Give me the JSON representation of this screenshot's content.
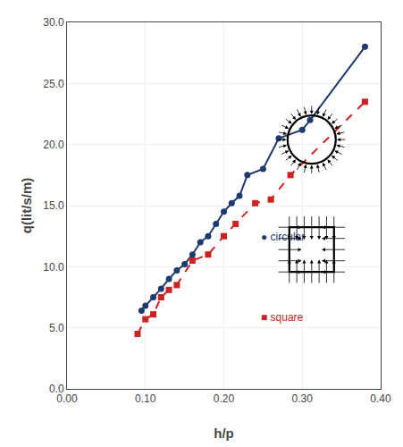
{
  "chart_data": {
    "type": "line",
    "x_label": "h/p",
    "y_label": "q(lit/s/m)",
    "series": [
      {
        "x": [
          0.095,
          0.1,
          0.11,
          0.12,
          0.13,
          0.14,
          0.15,
          0.16,
          0.17,
          0.18,
          0.19,
          0.2,
          0.21,
          0.22,
          0.23,
          0.25,
          0.27,
          0.3,
          0.31,
          0.38
        ],
        "values": [
          6.4,
          6.8,
          7.5,
          8.2,
          9.0,
          9.7,
          10.2,
          11.0,
          12.0,
          12.5,
          13.5,
          14.5,
          15.2,
          15.8,
          17.5,
          18.0,
          20.5,
          21.2,
          22.0,
          28.0
        ],
        "color": "#1f3a6e",
        "marker": "circle",
        "line_style": "solid"
      },
      {
        "x": [
          0.09,
          0.1,
          0.11,
          0.12,
          0.13,
          0.14,
          0.16,
          0.18,
          0.2,
          0.215,
          0.24,
          0.26,
          0.285,
          0.38
        ],
        "values": [
          4.5,
          5.7,
          6.1,
          7.5,
          8.1,
          8.5,
          10.5,
          11.0,
          12.5,
          13.5,
          15.2,
          15.5,
          17.5,
          23.5
        ],
        "color": "#cc2222",
        "marker": "square",
        "line_style": "dashed"
      }
    ],
    "annotations": [
      {
        "text": "● circular",
        "x": 0.245,
        "y": 11.8,
        "color": "#1f3a6e"
      },
      {
        "text": "■ square",
        "x": 0.245,
        "y": 5.2,
        "color": "#cc2222"
      }
    ],
    "xlim": [
      0.0,
      0.4
    ],
    "ylim": [
      0.0,
      30.0
    ],
    "xticks": [
      {
        "value": 0.0,
        "label": "0.00"
      },
      {
        "value": 0.1,
        "label": "0.10"
      },
      {
        "value": 0.2,
        "label": "0.20"
      },
      {
        "value": 0.3,
        "label": "0.30"
      },
      {
        "value": 0.4,
        "label": "0.40"
      }
    ],
    "yticks": [
      {
        "value": 0.0,
        "label": "0.0"
      },
      {
        "value": 5.0,
        "label": "5.0"
      },
      {
        "value": 10.0,
        "label": "10.0"
      },
      {
        "value": 15.0,
        "label": "15.0"
      },
      {
        "value": 20.0,
        "label": "20.0"
      },
      {
        "value": 25.0,
        "label": "25.0"
      },
      {
        "value": 30.0,
        "label": "30.0"
      }
    ],
    "grid": true
  }
}
